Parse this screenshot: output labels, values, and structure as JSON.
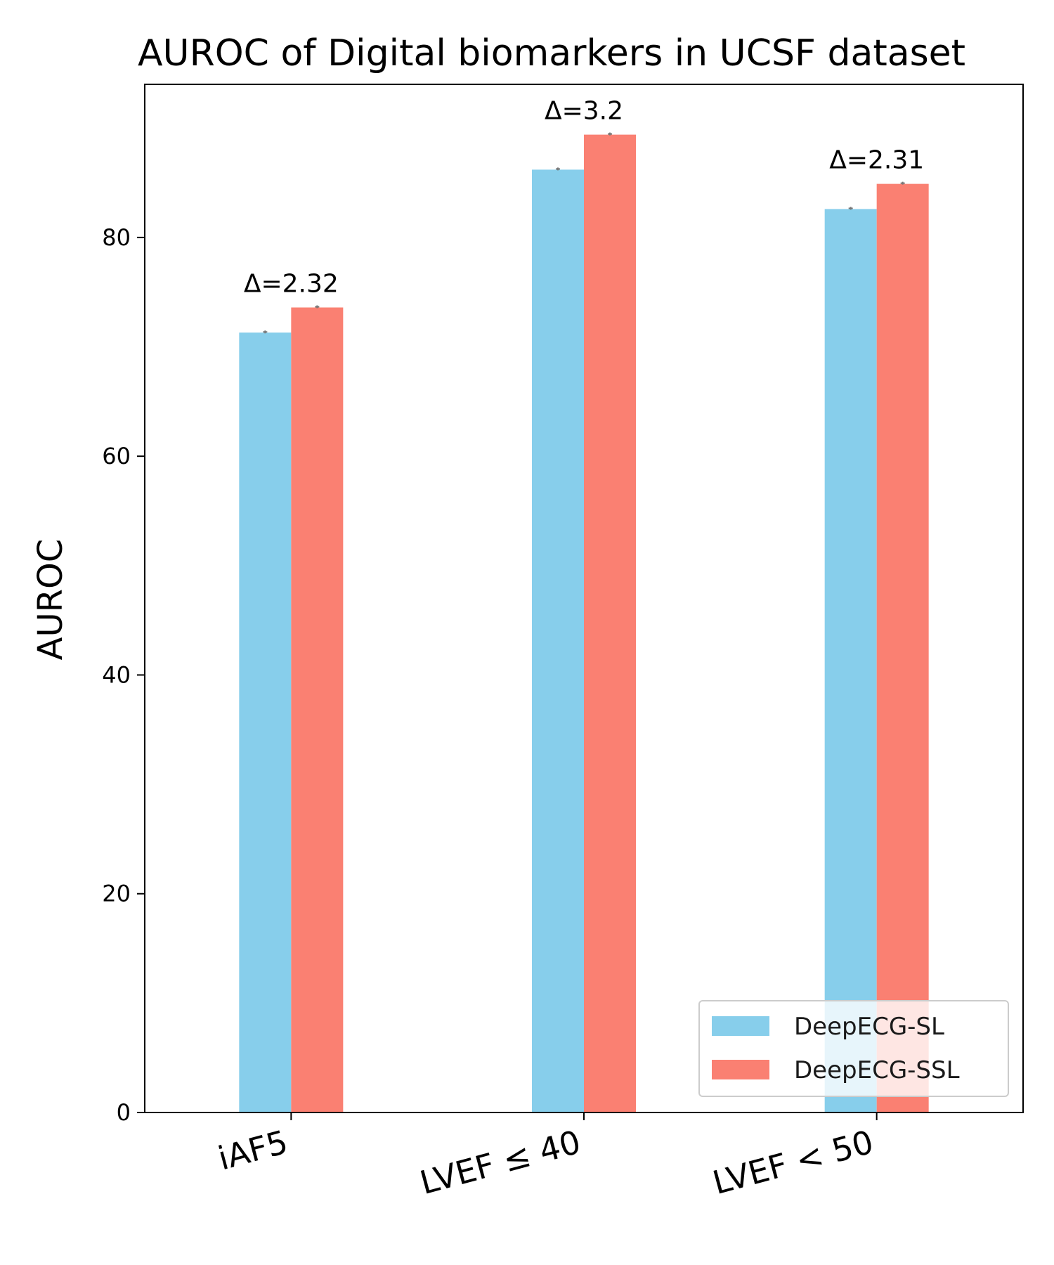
{
  "chart_data": {
    "type": "bar",
    "title": "AUROC of Digital biomarkers in UCSF dataset",
    "xlabel": "",
    "ylabel": "AUROC",
    "ylim": [
      0,
      94
    ],
    "yticks": [
      0,
      20,
      40,
      60,
      80
    ],
    "categories": [
      "iAF5",
      "LVEF ≤ 40",
      "LVEF < 50"
    ],
    "series": [
      {
        "name": "DeepECG-SL",
        "color": "#87CEEB",
        "values": [
          71.3,
          86.2,
          82.6
        ]
      },
      {
        "name": "DeepECG-SSL",
        "color": "#FA8072",
        "values": [
          73.6,
          89.4,
          84.9
        ]
      }
    ],
    "annotations": [
      "Δ=2.32",
      "Δ=3.2",
      "Δ=2.31"
    ],
    "legend": {
      "position": "lower-right"
    },
    "grid": false,
    "error_bars": true
  }
}
